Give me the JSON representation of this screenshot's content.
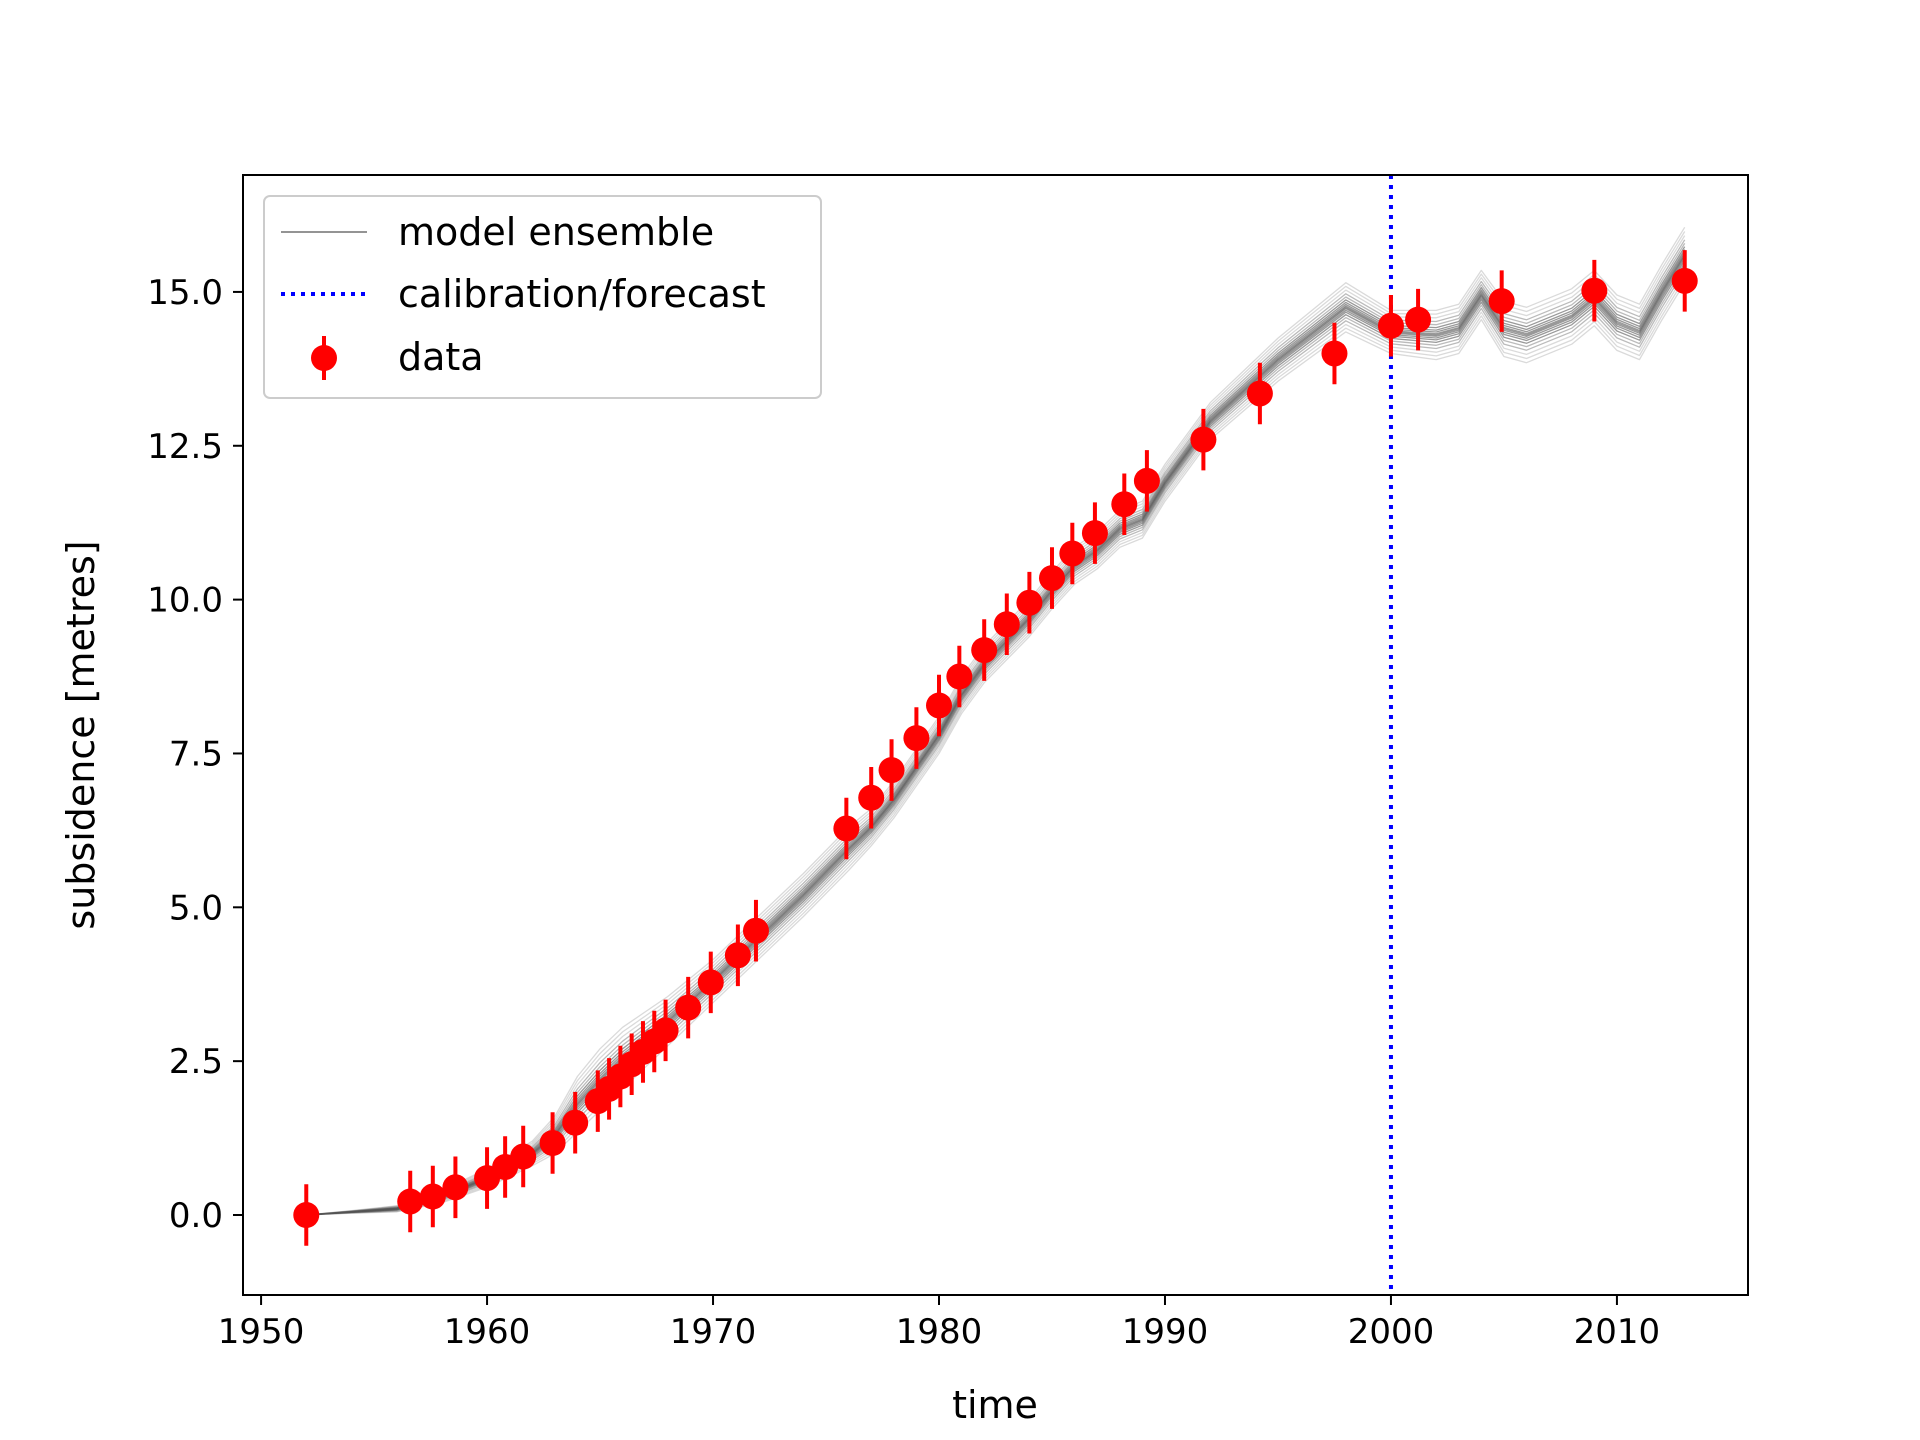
{
  "chart_data": {
    "type": "line",
    "title": "",
    "xlabel": "time",
    "ylabel": "subsidence [metres]",
    "xlim": [
      1949.2,
      2015.8
    ],
    "ylim": [
      -1.3,
      16.9
    ],
    "x_ticks": [
      1950,
      1960,
      1970,
      1980,
      1990,
      2000,
      2010
    ],
    "x_tick_labels": [
      "1950",
      "1960",
      "1970",
      "1980",
      "1990",
      "2000",
      "2010"
    ],
    "y_ticks": [
      0.0,
      2.5,
      5.0,
      7.5,
      10.0,
      12.5,
      15.0
    ],
    "y_tick_labels": [
      "0.0",
      "2.5",
      "5.0",
      "7.5",
      "10.0",
      "12.5",
      "15.0"
    ],
    "grid": false,
    "legend": {
      "placement": "upper-left",
      "entries": [
        {
          "label": "model ensemble",
          "style": "thin-gray-line"
        },
        {
          "label": "calibration/forecast",
          "style": "blue-dotted-line"
        },
        {
          "label": "data",
          "style": "red-marker-with-errorbar"
        }
      ]
    },
    "colors": {
      "ensemble": "#555555",
      "calibration_line": "#0000ff",
      "data": "#ff0000"
    },
    "calibration_forecast_x": 2000,
    "model_ensemble": {
      "name": "model ensemble",
      "x": [
        1952,
        1954,
        1956,
        1958,
        1960,
        1962,
        1963,
        1964,
        1965,
        1966,
        1967,
        1968,
        1970,
        1972,
        1974,
        1976,
        1977,
        1978,
        1980,
        1981,
        1982,
        1984,
        1985,
        1986,
        1987,
        1988,
        1989,
        1990,
        1992,
        1995,
        1998,
        2000,
        2002,
        2003,
        2004,
        2005,
        2006,
        2008,
        2009,
        2010,
        2011,
        2012,
        2013
      ],
      "y_center": [
        0.0,
        0.05,
        0.1,
        0.3,
        0.6,
        1.0,
        1.3,
        1.8,
        2.2,
        2.55,
        2.85,
        3.15,
        3.8,
        4.5,
        5.2,
        5.95,
        6.3,
        6.75,
        7.8,
        8.45,
        8.95,
        9.7,
        10.15,
        10.55,
        10.8,
        11.15,
        11.3,
        11.9,
        12.9,
        13.9,
        14.75,
        14.35,
        14.3,
        14.4,
        14.95,
        14.4,
        14.3,
        14.6,
        14.9,
        14.5,
        14.35,
        15.0,
        15.6
      ],
      "spread_max": [
        0.0,
        0.02,
        0.05,
        0.1,
        0.15,
        0.2,
        0.3,
        0.45,
        0.5,
        0.5,
        0.45,
        0.4,
        0.35,
        0.35,
        0.35,
        0.35,
        0.3,
        0.3,
        0.3,
        0.3,
        0.3,
        0.3,
        0.3,
        0.3,
        0.3,
        0.3,
        0.3,
        0.3,
        0.3,
        0.35,
        0.4,
        0.35,
        0.4,
        0.4,
        0.4,
        0.45,
        0.45,
        0.45,
        0.45,
        0.45,
        0.45,
        0.45,
        0.45
      ],
      "member_offsets": [
        -1.0,
        -0.85,
        -0.7,
        -0.55,
        -0.42,
        -0.3,
        -0.2,
        -0.12,
        -0.05,
        0.0,
        0.05,
        0.12,
        0.2,
        0.3,
        0.42,
        0.55,
        0.7,
        0.85,
        1.0
      ]
    },
    "data": {
      "name": "data",
      "x": [
        1952.0,
        1956.6,
        1957.6,
        1958.6,
        1960.0,
        1960.8,
        1961.6,
        1962.9,
        1963.9,
        1964.9,
        1965.4,
        1965.9,
        1966.4,
        1966.9,
        1967.4,
        1967.9,
        1968.9,
        1969.9,
        1971.1,
        1971.9,
        1975.9,
        1977.0,
        1977.9,
        1979.0,
        1980.0,
        1980.9,
        1982.0,
        1983.0,
        1984.0,
        1985.0,
        1985.9,
        1986.9,
        1988.2,
        1989.2,
        1991.7,
        1994.2,
        1997.5,
        2000.0,
        2001.2,
        2004.9,
        2009.0,
        2013.0
      ],
      "y": [
        0.0,
        0.22,
        0.3,
        0.45,
        0.6,
        0.78,
        0.95,
        1.17,
        1.5,
        1.85,
        2.05,
        2.25,
        2.45,
        2.65,
        2.82,
        3.0,
        3.37,
        3.78,
        4.22,
        4.62,
        6.28,
        6.78,
        7.23,
        7.75,
        8.28,
        8.75,
        9.18,
        9.6,
        9.95,
        10.35,
        10.75,
        11.08,
        11.55,
        11.93,
        12.6,
        13.35,
        14.0,
        14.45,
        14.55,
        14.85,
        15.02,
        15.18
      ],
      "yerr": 0.5
    }
  }
}
